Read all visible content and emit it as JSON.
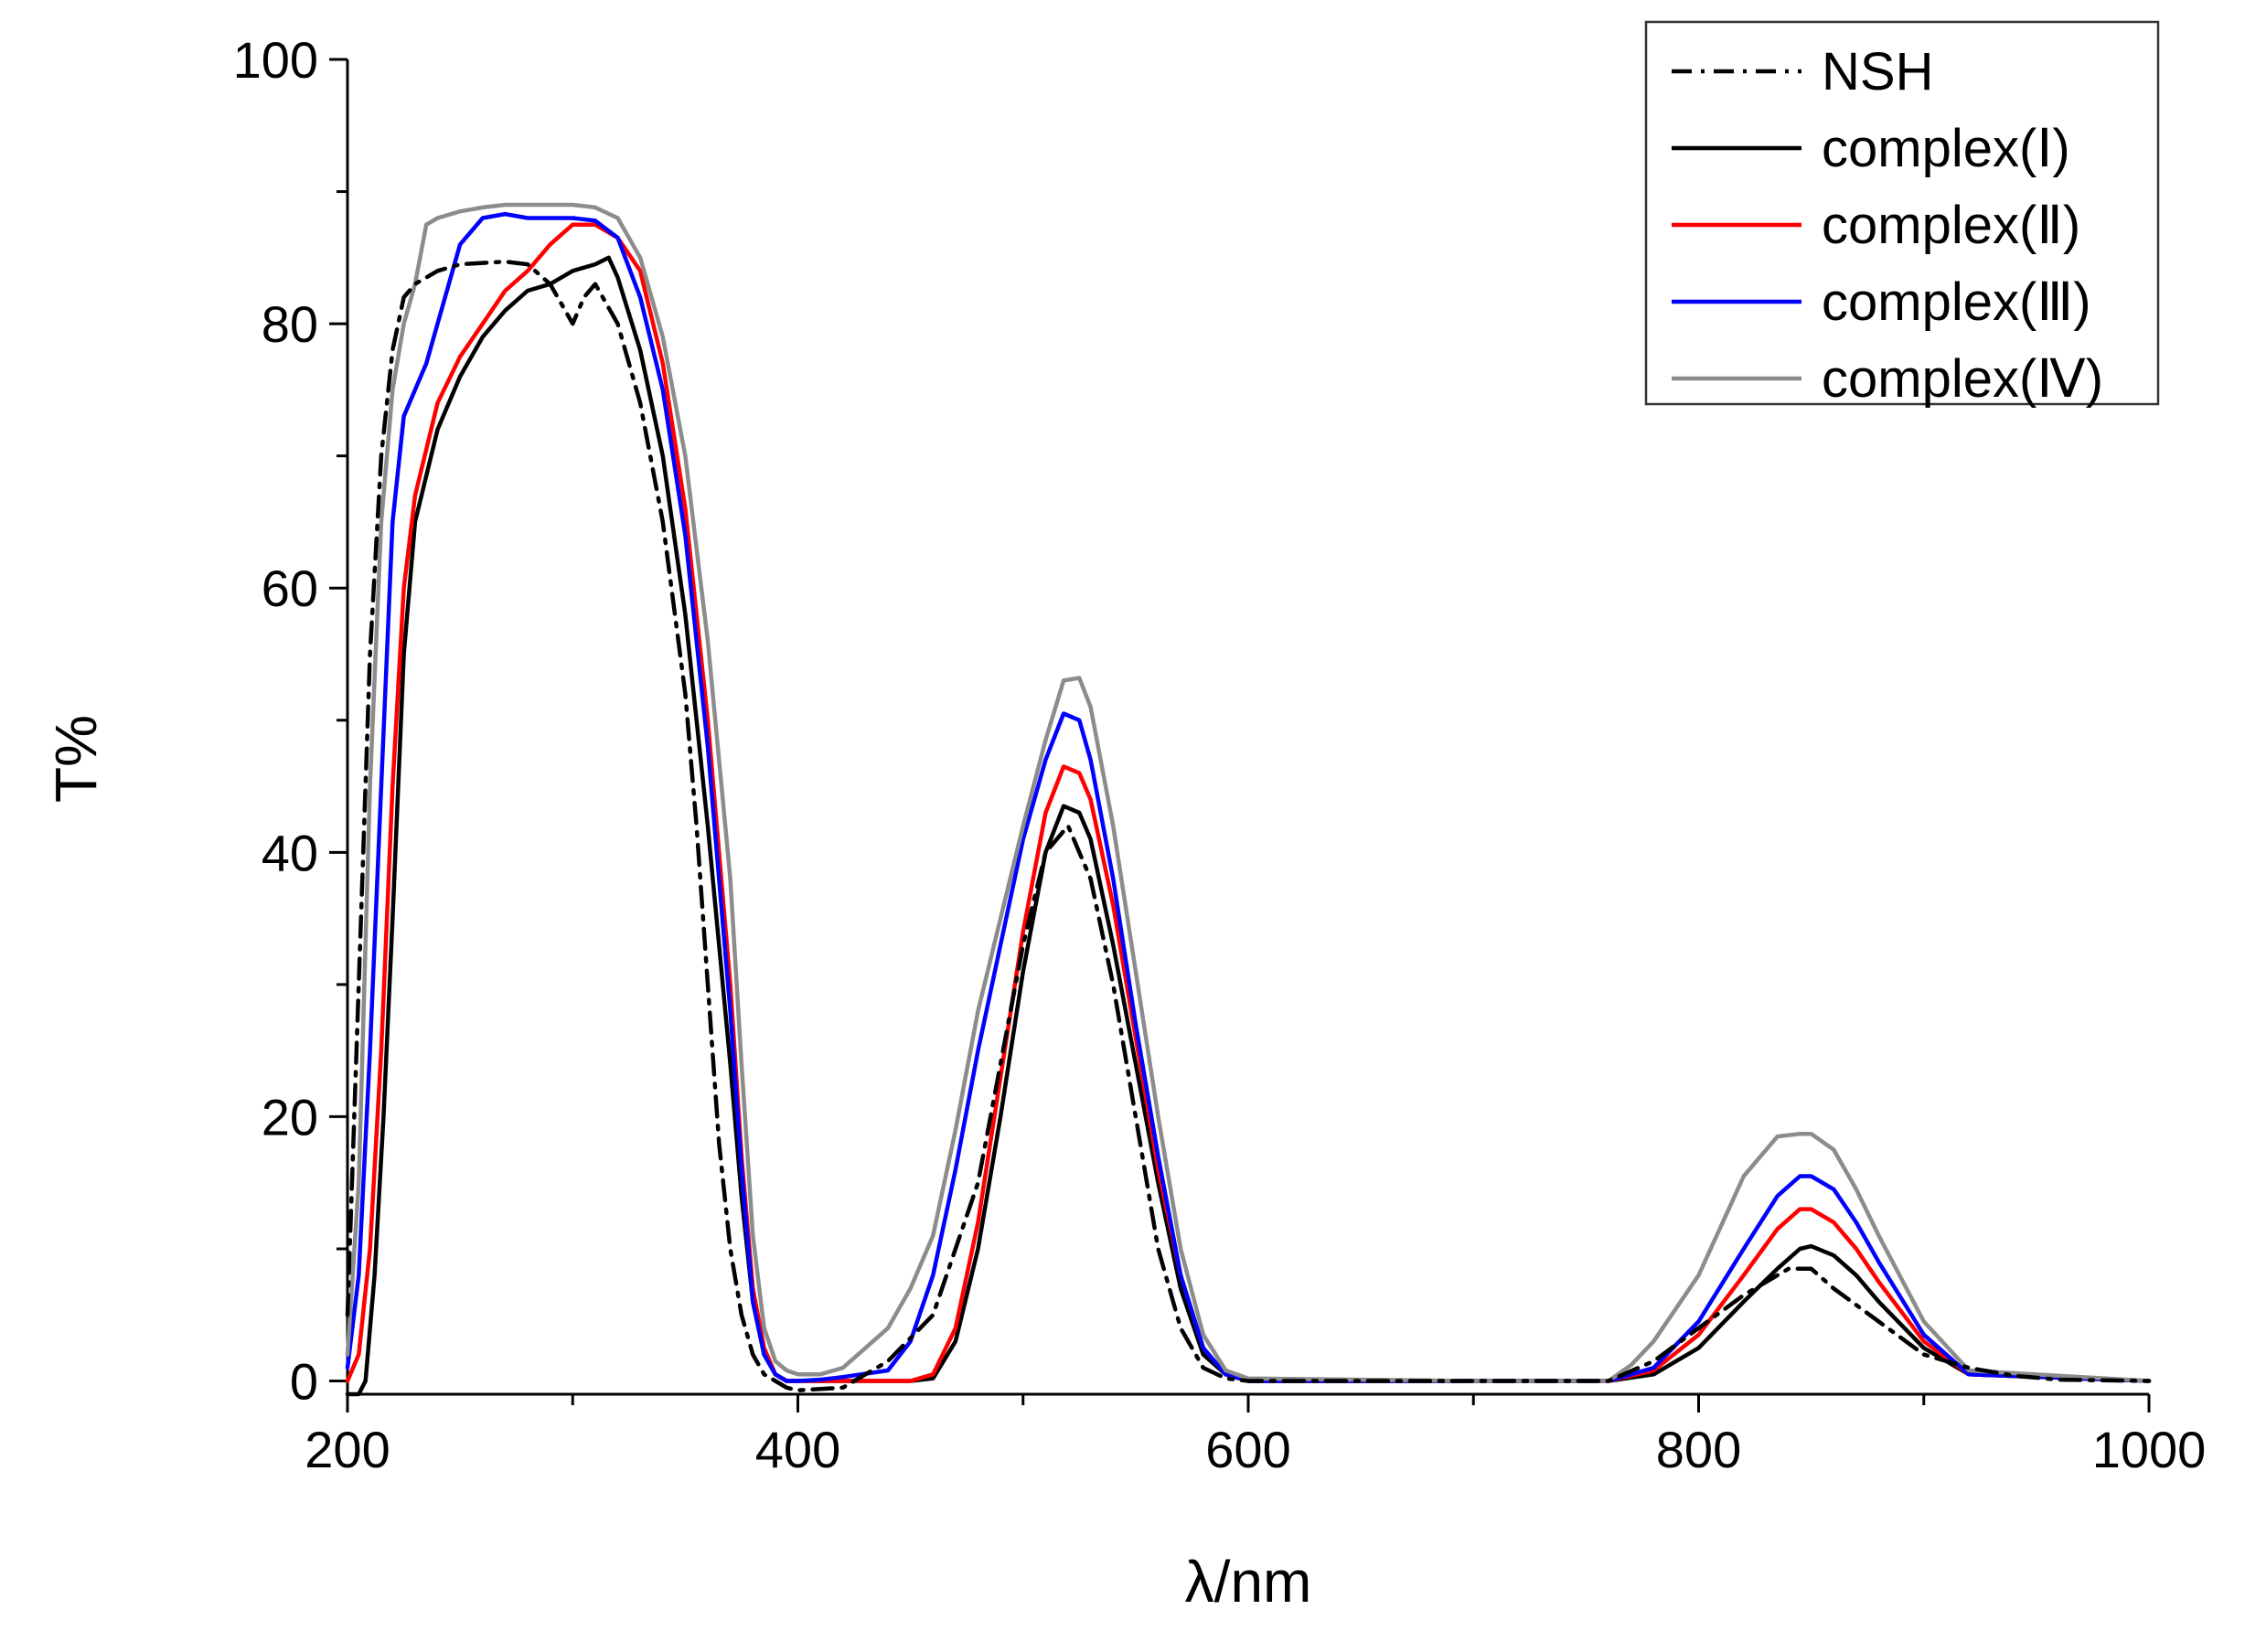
{
  "chart_data": {
    "type": "line",
    "title": "",
    "xlabel": "λ/nm",
    "ylabel": "T%",
    "xlim": [
      200,
      1000
    ],
    "ylim": [
      -1,
      100
    ],
    "xticks": [
      200,
      400,
      600,
      800,
      1000
    ],
    "xtick_labels": [
      "200",
      "400",
      "600",
      "800",
      "1000"
    ],
    "yticks": [
      0,
      20,
      40,
      60,
      80,
      100
    ],
    "ytick_labels": [
      "0",
      "20",
      "40",
      "60",
      "80",
      "100"
    ],
    "grid": false,
    "legend_position": "top-right",
    "series": [
      {
        "name": "NSH",
        "color": "#000000",
        "dash": "dashdot",
        "x": [
          200,
          205,
          210,
          215,
          220,
          225,
          230,
          240,
          250,
          260,
          270,
          280,
          290,
          300,
          305,
          310,
          320,
          330,
          340,
          350,
          355,
          360,
          365,
          370,
          375,
          380,
          385,
          390,
          395,
          400,
          420,
          440,
          460,
          480,
          500,
          510,
          520,
          530,
          540,
          550,
          560,
          570,
          580,
          590,
          600,
          700,
          760,
          780,
          800,
          820,
          840,
          850,
          860,
          880,
          900,
          920,
          940,
          960,
          1000
        ],
        "y": [
          5,
          30,
          55,
          70,
          78,
          82,
          83,
          84,
          84.5,
          84.6,
          84.7,
          84.5,
          83,
          80,
          82,
          83,
          80,
          74,
          65,
          52,
          42,
          30,
          18,
          10,
          5,
          2,
          0.5,
          0,
          -0.5,
          -0.7,
          -0.5,
          1.5,
          5,
          15,
          33,
          40,
          42,
          38,
          30,
          20,
          10,
          4,
          1,
          0.2,
          0,
          0,
          0,
          1.5,
          4,
          6.5,
          8.5,
          8.5,
          7,
          4.5,
          2,
          1,
          0.4,
          0.1,
          0
        ]
      },
      {
        "name": "complex(Ⅰ)",
        "color": "#000000",
        "dash": "solid",
        "x": [
          200,
          205,
          208,
          212,
          216,
          220,
          225,
          230,
          240,
          250,
          260,
          270,
          280,
          290,
          300,
          310,
          316,
          320,
          330,
          340,
          350,
          360,
          370,
          375,
          380,
          385,
          390,
          395,
          400,
          420,
          440,
          450,
          460,
          470,
          480,
          490,
          500,
          510,
          518,
          525,
          530,
          540,
          550,
          560,
          570,
          580,
          590,
          600,
          700,
          760,
          780,
          800,
          820,
          835,
          845,
          850,
          860,
          870,
          880,
          900,
          920,
          1000
        ],
        "y": [
          -1,
          -1,
          0,
          8,
          20,
          35,
          55,
          65,
          72,
          76,
          79,
          81,
          82.5,
          83,
          84,
          84.5,
          85,
          83.5,
          78,
          70,
          58,
          42,
          24,
          14,
          6,
          2,
          0.5,
          0,
          0,
          0,
          0,
          0,
          0.2,
          3,
          10,
          20,
          31,
          40,
          43.5,
          43,
          41,
          33,
          24,
          15,
          7,
          2,
          0.5,
          0,
          0,
          0,
          0.5,
          2.5,
          6,
          8.5,
          10,
          10.2,
          9.5,
          8,
          6,
          2.5,
          0.5,
          0
        ]
      },
      {
        "name": "complex(Ⅱ)",
        "color": "#ff0000",
        "dash": "solid",
        "x": [
          200,
          205,
          210,
          215,
          220,
          225,
          230,
          240,
          250,
          260,
          270,
          280,
          290,
          300,
          305,
          310,
          315,
          320,
          330,
          340,
          350,
          360,
          370,
          375,
          380,
          385,
          390,
          395,
          400,
          420,
          440,
          450,
          460,
          470,
          480,
          490,
          500,
          510,
          518,
          525,
          530,
          540,
          550,
          560,
          570,
          580,
          590,
          600,
          700,
          760,
          780,
          800,
          820,
          835,
          845,
          850,
          860,
          870,
          880,
          900,
          920,
          1000
        ],
        "y": [
          0,
          2,
          10,
          25,
          45,
          60,
          67,
          74,
          77.5,
          80,
          82.5,
          84,
          86,
          87.5,
          87.5,
          87.5,
          87,
          86.5,
          84,
          77,
          66,
          50,
          30,
          17,
          7,
          2.5,
          0.5,
          0,
          0,
          0,
          0,
          0,
          0.5,
          4,
          12,
          23,
          34,
          43,
          46.5,
          46,
          44,
          36,
          26,
          16,
          8,
          2.5,
          0.5,
          0,
          0,
          0,
          0.8,
          3.5,
          8,
          11.5,
          13,
          13,
          12,
          10,
          7.5,
          3,
          0.5,
          0
        ]
      },
      {
        "name": "complex(Ⅲ)",
        "color": "#0000ff",
        "dash": "solid",
        "x": [
          200,
          205,
          210,
          215,
          220,
          225,
          230,
          235,
          240,
          250,
          260,
          270,
          280,
          290,
          300,
          310,
          320,
          330,
          340,
          350,
          360,
          370,
          375,
          380,
          385,
          390,
          395,
          400,
          410,
          420,
          440,
          450,
          460,
          470,
          480,
          490,
          500,
          510,
          518,
          525,
          530,
          540,
          550,
          560,
          570,
          580,
          590,
          600,
          700,
          760,
          780,
          800,
          820,
          835,
          845,
          850,
          860,
          870,
          880,
          900,
          920,
          1000
        ],
        "y": [
          1,
          8,
          25,
          45,
          65,
          73,
          75,
          77,
          80,
          86,
          88,
          88.3,
          88,
          88,
          88,
          87.8,
          86.5,
          82,
          75,
          64,
          48,
          28,
          16,
          6,
          2,
          0.5,
          0,
          0,
          0.1,
          0.3,
          0.8,
          3,
          8,
          16,
          25,
          33,
          41,
          47,
          50.5,
          50,
          47,
          38,
          27,
          17,
          8,
          2.5,
          0.5,
          0,
          0,
          0,
          1,
          4.5,
          10,
          14,
          15.5,
          15.5,
          14.5,
          12,
          9,
          3.5,
          0.5,
          0
        ]
      },
      {
        "name": "complex(Ⅳ)",
        "color": "#8c8c8c",
        "dash": "solid",
        "x": [
          200,
          205,
          210,
          215,
          220,
          225,
          230,
          235,
          240,
          250,
          260,
          270,
          280,
          290,
          300,
          310,
          320,
          330,
          340,
          350,
          360,
          370,
          375,
          380,
          385,
          390,
          395,
          400,
          410,
          420,
          430,
          440,
          450,
          460,
          470,
          480,
          490,
          500,
          510,
          518,
          525,
          530,
          540,
          550,
          560,
          570,
          580,
          590,
          600,
          700,
          760,
          770,
          780,
          800,
          820,
          835,
          845,
          850,
          860,
          870,
          880,
          900,
          920,
          1000
        ],
        "y": [
          2,
          15,
          45,
          65,
          75,
          80,
          83,
          87.5,
          88,
          88.5,
          88.8,
          89,
          89,
          89,
          89,
          88.8,
          88,
          85,
          79,
          70,
          56,
          38,
          24,
          11,
          4,
          1.5,
          0.8,
          0.5,
          0.5,
          1,
          2.5,
          4,
          7,
          11,
          19,
          28,
          35,
          42,
          48.5,
          53,
          53.2,
          51,
          42,
          31,
          20,
          10,
          3.5,
          0.8,
          0.2,
          0,
          0,
          1.2,
          3,
          8,
          15.5,
          18.5,
          18.7,
          18.7,
          17.5,
          14.5,
          11,
          4.5,
          0.8,
          0
        ]
      }
    ]
  }
}
